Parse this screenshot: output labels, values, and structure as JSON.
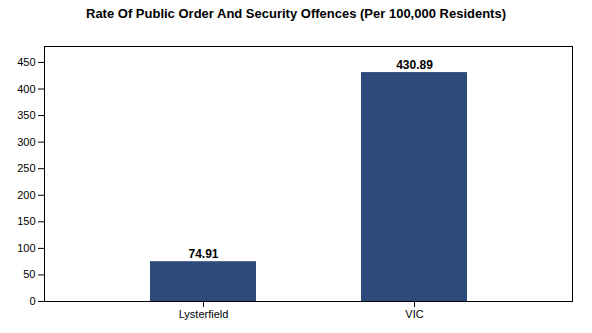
{
  "chart_data": {
    "type": "bar",
    "title": "Rate Of Public Order And Security Offences (Per 100,000 Residents)",
    "categories": [
      "Lysterfield",
      "VIC"
    ],
    "values": [
      74.91,
      430.89
    ],
    "color": "#2d4a7a",
    "ylim": [
      0,
      480
    ],
    "yticks": [
      0,
      50,
      100,
      150,
      200,
      250,
      300,
      350,
      400,
      450
    ],
    "grid": false,
    "data_labels": true
  }
}
